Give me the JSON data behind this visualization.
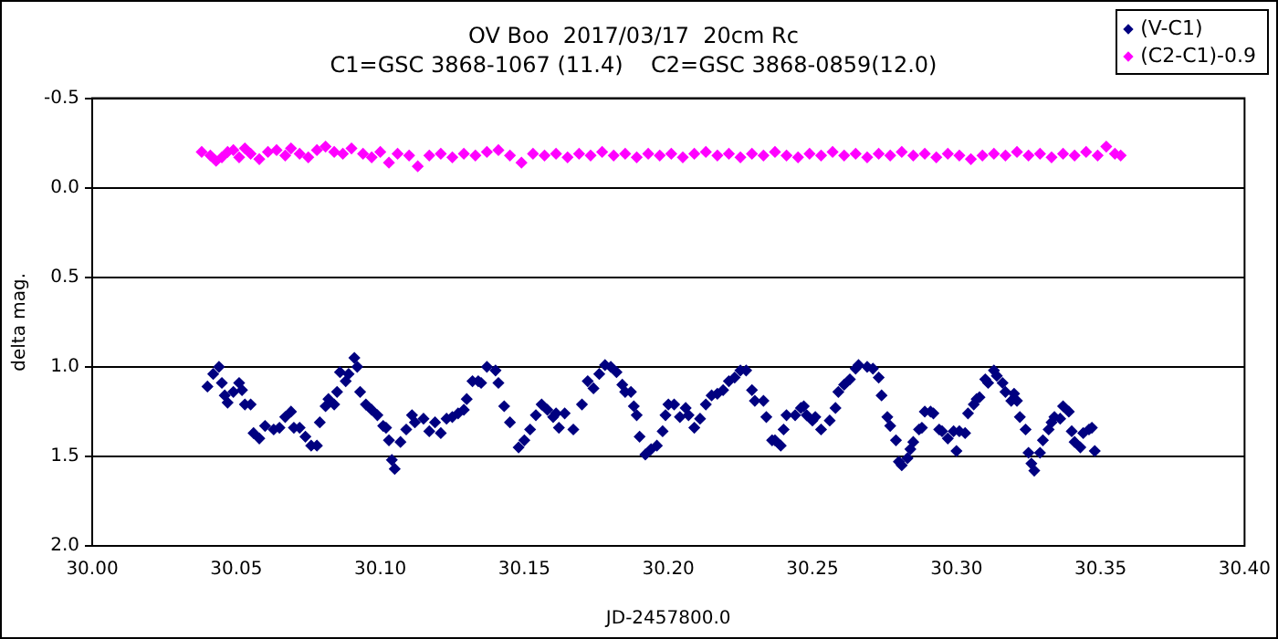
{
  "chart_data": {
    "type": "scatter",
    "title": "OV Boo  2017/03/17  20cm Rc",
    "subtitle": "C1=GSC 3868-1067 (11.4)    C2=GSC 3868-0859(12.0)",
    "xlabel": "JD-2457800.0",
    "ylabel": "delta mag.",
    "xlim": [
      30.0,
      30.4
    ],
    "xticks": [
      {
        "value": 30.0,
        "label": "30.00"
      },
      {
        "value": 30.05,
        "label": "30.05"
      },
      {
        "value": 30.1,
        "label": "30.10"
      },
      {
        "value": 30.15,
        "label": "30.15"
      },
      {
        "value": 30.2,
        "label": "30.20"
      },
      {
        "value": 30.25,
        "label": "30.25"
      },
      {
        "value": 30.3,
        "label": "30.30"
      },
      {
        "value": 30.35,
        "label": "30.35"
      },
      {
        "value": 30.4,
        "label": "30.40"
      }
    ],
    "ylim": [
      2.0,
      -0.5
    ],
    "yticks": [
      {
        "value": -0.5,
        "label": "-0.5"
      },
      {
        "value": 0,
        "label": "0.0"
      },
      {
        "value": 0.5,
        "label": "0.5"
      },
      {
        "value": 1.0,
        "label": "1.0"
      },
      {
        "value": 1.5,
        "label": "1.5"
      },
      {
        "value": 2.0,
        "label": "2.0"
      }
    ],
    "grid": "y",
    "legend": "top right",
    "marker": "diamond",
    "series": [
      {
        "name": "(V-C1)",
        "color": "#000080",
        "x": [
          30.04,
          30.042,
          30.044,
          30.045,
          30.046,
          30.047,
          30.049,
          30.051,
          30.052,
          30.053,
          30.055,
          30.056,
          30.058,
          30.06,
          30.063,
          30.065,
          30.067,
          30.069,
          30.07,
          30.072,
          30.074,
          30.076,
          30.078,
          30.079,
          30.081,
          30.082,
          30.084,
          30.085,
          30.086,
          30.088,
          30.089,
          30.091,
          30.092,
          30.093,
          30.095,
          30.097,
          30.099,
          30.101,
          30.102,
          30.103,
          30.104,
          30.105,
          30.107,
          30.109,
          30.111,
          30.112,
          30.115,
          30.117,
          30.119,
          30.121,
          30.123,
          30.125,
          30.127,
          30.129,
          30.13,
          30.132,
          30.134,
          30.135,
          30.137,
          30.14,
          30.141,
          30.143,
          30.145,
          30.148,
          30.15,
          30.152,
          30.154,
          30.156,
          30.158,
          30.16,
          30.161,
          30.162,
          30.164,
          30.167,
          30.17,
          30.172,
          30.174,
          30.176,
          30.178,
          30.18,
          30.182,
          30.184,
          30.185,
          30.187,
          30.188,
          30.189,
          30.19,
          30.192,
          30.194,
          30.196,
          30.198,
          30.199,
          30.2,
          30.202,
          30.204,
          30.206,
          30.207,
          30.209,
          30.211,
          30.213,
          30.215,
          30.217,
          30.219,
          30.221,
          30.223,
          30.225,
          30.227,
          30.229,
          30.23,
          30.233,
          30.234,
          30.236,
          30.237,
          30.239,
          30.24,
          30.241,
          30.244,
          30.246,
          30.247,
          30.248,
          30.25,
          30.251,
          30.253,
          30.256,
          30.258,
          30.259,
          30.261,
          30.263,
          30.265,
          30.266,
          30.269,
          30.271,
          30.273,
          30.274,
          30.276,
          30.277,
          30.279,
          30.28,
          30.281,
          30.283,
          30.284,
          30.285,
          30.287,
          30.288,
          30.289,
          30.291,
          30.292,
          30.294,
          30.295,
          30.297,
          30.299,
          30.3,
          30.301,
          30.303,
          30.304,
          30.306,
          30.307,
          30.308,
          30.31,
          30.311,
          30.313,
          30.314,
          30.316,
          30.317,
          30.319,
          30.32,
          30.321,
          30.322,
          30.324,
          30.325,
          30.326,
          30.327,
          30.329,
          30.33,
          30.332,
          30.333,
          30.334,
          30.336,
          30.337,
          30.339,
          30.34,
          30.341,
          30.343,
          30.344,
          30.346,
          30.347,
          30.348
        ],
        "values": [
          1.11,
          1.04,
          1.0,
          1.09,
          1.16,
          1.2,
          1.14,
          1.09,
          1.13,
          1.21,
          1.21,
          1.37,
          1.4,
          1.33,
          1.35,
          1.34,
          1.28,
          1.25,
          1.34,
          1.34,
          1.39,
          1.44,
          1.44,
          1.31,
          1.22,
          1.18,
          1.21,
          1.14,
          1.03,
          1.08,
          1.04,
          0.95,
          1.0,
          1.14,
          1.21,
          1.24,
          1.27,
          1.33,
          1.34,
          1.41,
          1.52,
          1.57,
          1.42,
          1.35,
          1.27,
          1.31,
          1.29,
          1.36,
          1.31,
          1.37,
          1.29,
          1.28,
          1.26,
          1.24,
          1.18,
          1.08,
          1.08,
          1.09,
          1.0,
          1.02,
          1.09,
          1.22,
          1.31,
          1.45,
          1.41,
          1.35,
          1.27,
          1.21,
          1.24,
          1.28,
          1.26,
          1.34,
          1.26,
          1.35,
          1.21,
          1.08,
          1.12,
          1.04,
          0.99,
          1.0,
          1.03,
          1.1,
          1.14,
          1.14,
          1.22,
          1.27,
          1.39,
          1.49,
          1.46,
          1.44,
          1.36,
          1.27,
          1.21,
          1.21,
          1.28,
          1.23,
          1.27,
          1.34,
          1.29,
          1.21,
          1.16,
          1.15,
          1.13,
          1.08,
          1.06,
          1.02,
          1.02,
          1.13,
          1.19,
          1.19,
          1.28,
          1.41,
          1.41,
          1.44,
          1.35,
          1.27,
          1.27,
          1.23,
          1.22,
          1.27,
          1.3,
          1.28,
          1.35,
          1.3,
          1.23,
          1.14,
          1.1,
          1.07,
          1.01,
          0.99,
          1.0,
          1.01,
          1.06,
          1.16,
          1.28,
          1.33,
          1.41,
          1.53,
          1.55,
          1.51,
          1.46,
          1.42,
          1.35,
          1.34,
          1.25,
          1.25,
          1.26,
          1.35,
          1.36,
          1.4,
          1.36,
          1.47,
          1.36,
          1.37,
          1.26,
          1.21,
          1.18,
          1.17,
          1.07,
          1.09,
          1.02,
          1.05,
          1.09,
          1.14,
          1.19,
          1.15,
          1.19,
          1.28,
          1.35,
          1.48,
          1.54,
          1.58,
          1.48,
          1.41,
          1.35,
          1.31,
          1.28,
          1.29,
          1.22,
          1.25,
          1.36,
          1.42,
          1.45,
          1.37,
          1.35,
          1.34,
          1.47
        ]
      },
      {
        "name": "(C2-C1)-0.9",
        "color": "#ff00ff",
        "x": [
          30.038,
          30.041,
          30.043,
          30.045,
          30.047,
          30.049,
          30.051,
          30.053,
          30.055,
          30.058,
          30.061,
          30.064,
          30.067,
          30.069,
          30.072,
          30.075,
          30.078,
          30.081,
          30.084,
          30.087,
          30.09,
          30.094,
          30.097,
          30.1,
          30.103,
          30.106,
          30.11,
          30.113,
          30.117,
          30.121,
          30.125,
          30.129,
          30.133,
          30.137,
          30.141,
          30.145,
          30.149,
          30.153,
          30.157,
          30.161,
          30.165,
          30.169,
          30.173,
          30.177,
          30.181,
          30.185,
          30.189,
          30.193,
          30.197,
          30.201,
          30.205,
          30.209,
          30.213,
          30.217,
          30.221,
          30.225,
          30.229,
          30.233,
          30.237,
          30.241,
          30.245,
          30.249,
          30.253,
          30.257,
          30.261,
          30.265,
          30.269,
          30.273,
          30.277,
          30.281,
          30.285,
          30.289,
          30.293,
          30.297,
          30.301,
          30.305,
          30.309,
          30.313,
          30.317,
          30.321,
          30.325,
          30.329,
          30.333,
          30.337,
          30.341,
          30.345,
          30.349,
          30.352,
          30.355,
          30.357
        ],
        "values": [
          -0.2,
          -0.18,
          -0.15,
          -0.17,
          -0.2,
          -0.21,
          -0.17,
          -0.22,
          -0.19,
          -0.16,
          -0.2,
          -0.21,
          -0.18,
          -0.22,
          -0.19,
          -0.17,
          -0.21,
          -0.23,
          -0.2,
          -0.19,
          -0.22,
          -0.19,
          -0.17,
          -0.2,
          -0.14,
          -0.19,
          -0.18,
          -0.12,
          -0.18,
          -0.19,
          -0.17,
          -0.19,
          -0.18,
          -0.2,
          -0.21,
          -0.18,
          -0.14,
          -0.19,
          -0.18,
          -0.19,
          -0.17,
          -0.19,
          -0.18,
          -0.2,
          -0.18,
          -0.19,
          -0.17,
          -0.19,
          -0.18,
          -0.19,
          -0.17,
          -0.19,
          -0.2,
          -0.18,
          -0.19,
          -0.17,
          -0.19,
          -0.18,
          -0.2,
          -0.18,
          -0.17,
          -0.19,
          -0.18,
          -0.2,
          -0.18,
          -0.19,
          -0.17,
          -0.19,
          -0.18,
          -0.2,
          -0.18,
          -0.19,
          -0.17,
          -0.19,
          -0.18,
          -0.16,
          -0.18,
          -0.19,
          -0.18,
          -0.2,
          -0.18,
          -0.19,
          -0.17,
          -0.19,
          -0.18,
          -0.2,
          -0.18,
          -0.23,
          -0.19,
          -0.18
        ]
      }
    ]
  }
}
